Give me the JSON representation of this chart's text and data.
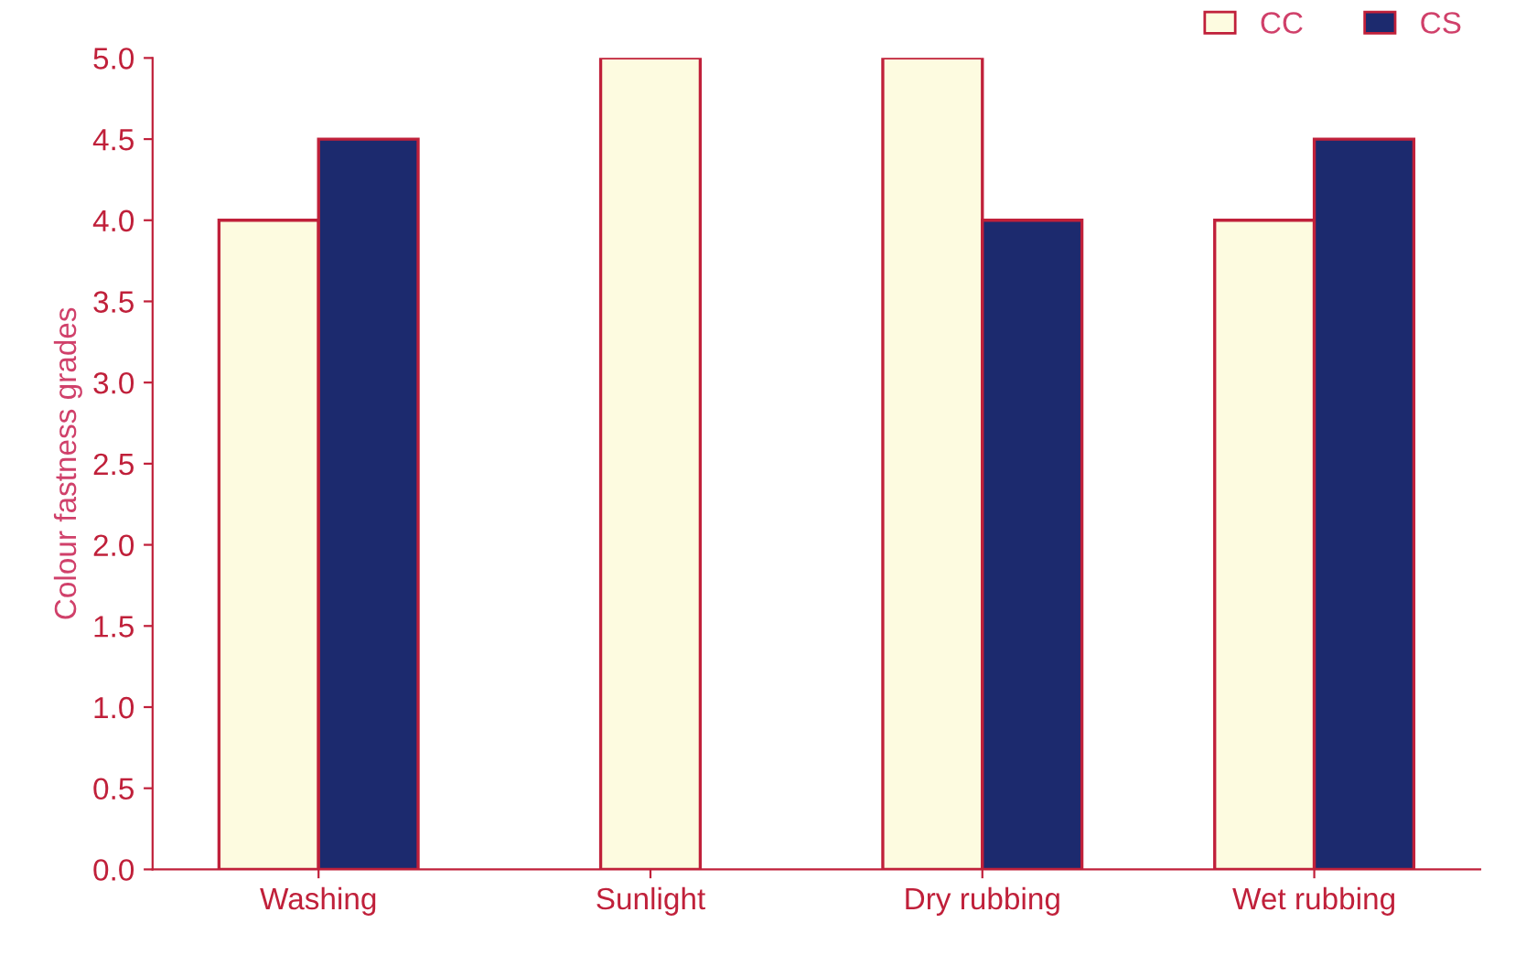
{
  "chart_data": {
    "type": "bar",
    "ylabel": "Colour fastness grades",
    "categories": [
      "Washing",
      "Sunlight",
      "Dry rubbing",
      "Wet rubbing"
    ],
    "series": [
      {
        "name": "CC",
        "color": "#fdfbe0",
        "values": [
          4.0,
          5.0,
          5.0,
          4.0
        ]
      },
      {
        "name": "CS",
        "color": "#1c2a6e",
        "values": [
          4.5,
          null,
          4.0,
          4.5
        ]
      }
    ],
    "ylim": [
      0,
      5.0
    ],
    "yticks": [
      {
        "value": 0,
        "label": "0.0"
      },
      {
        "value": 0.5,
        "label": "0.5"
      },
      {
        "value": 1.0,
        "label": "1.0"
      },
      {
        "value": 1.5,
        "label": "1.5"
      },
      {
        "value": 2.0,
        "label": "2.0"
      },
      {
        "value": 2.5,
        "label": "2.5"
      },
      {
        "value": 3.0,
        "label": "3.0"
      },
      {
        "value": 3.5,
        "label": "3.5"
      },
      {
        "value": 4.0,
        "label": "4.0"
      },
      {
        "value": 4.5,
        "label": "4.5"
      },
      {
        "value": 5.0,
        "label": "5.0"
      }
    ],
    "grid": false,
    "legend": "top right"
  }
}
